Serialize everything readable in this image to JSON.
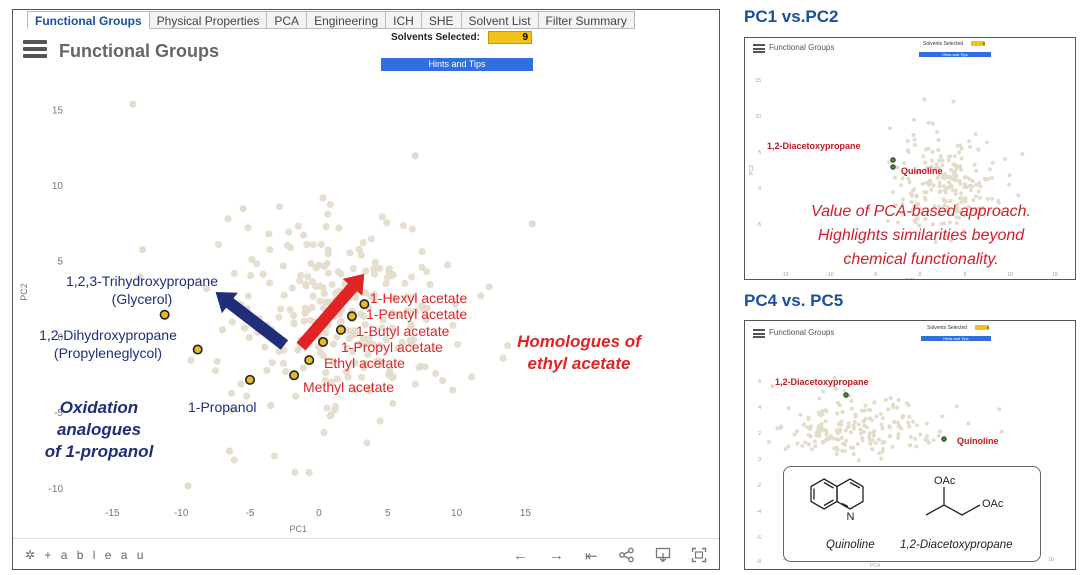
{
  "tabs": [
    {
      "label": "Functional Groups",
      "active": true
    },
    {
      "label": "Physical Properties",
      "active": false
    },
    {
      "label": "PCA",
      "active": false
    },
    {
      "label": "Engineering",
      "active": false
    },
    {
      "label": "ICH",
      "active": false
    },
    {
      "label": "SHE",
      "active": false
    },
    {
      "label": "Solvent List",
      "active": false
    },
    {
      "label": "Filter Summary",
      "active": false
    }
  ],
  "main": {
    "title": "Functional Groups",
    "solvents_selected_label": "Solvents Selected:",
    "solvents_selected_value": "9",
    "hints_label": "Hints and Tips"
  },
  "footer": {
    "logo_text": "+ a b l e a u",
    "icons": [
      "undo-icon",
      "redo-icon",
      "revert-icon",
      "share-icon",
      "download-icon",
      "fullscreen-icon"
    ]
  },
  "chart_data": {
    "type": "scatter",
    "xlabel": "PC1",
    "ylabel": "PC2",
    "xlim": [
      -18,
      17
    ],
    "ylim": [
      -11,
      17
    ],
    "xticks": [
      -15,
      -10,
      -5,
      0,
      5,
      10,
      15
    ],
    "yticks": [
      -10,
      -5,
      0,
      5,
      10,
      15
    ],
    "grid": false,
    "colors": {
      "background_points": "#e3dccb",
      "highlight_fill": "#e8b92a",
      "highlight_edge": "#222222",
      "oxidation": "#1f2d7a",
      "homologue": "#e02424"
    },
    "highlighted_series": [
      {
        "name": "1,2,3-Trihydroxypropane (Glycerol)",
        "group": "oxidation",
        "x": -11.2,
        "y": 1.5
      },
      {
        "name": "1,2-Dihydroxypropane (Propyleneglycol)",
        "group": "oxidation",
        "x": -8.8,
        "y": -0.8
      },
      {
        "name": "1-Propanol",
        "group": "oxidation",
        "x": -5.0,
        "y": -2.8
      },
      {
        "name": "Methyl acetate",
        "group": "homologue",
        "x": -1.8,
        "y": -2.5
      },
      {
        "name": "Ethyl acetate",
        "group": "homologue",
        "x": -0.7,
        "y": -1.5
      },
      {
        "name": "1-Propyl acetate",
        "group": "homologue",
        "x": 0.3,
        "y": -0.3
      },
      {
        "name": "1-Butyl acetate",
        "group": "homologue",
        "x": 1.6,
        "y": 0.5
      },
      {
        "name": "1-Pentyl acetate",
        "group": "homologue",
        "x": 2.4,
        "y": 1.4
      },
      {
        "name": "1-Hexyl acetate",
        "group": "homologue",
        "x": 3.3,
        "y": 2.2
      }
    ],
    "label_lines": {
      "glycerol": [
        "1,2,3-Trihydroxypropane",
        "(Glycerol)"
      ],
      "propyleneglycol": [
        "1,2-Dihydroxypropane",
        "(Propyleneglycol)"
      ],
      "propanol": "1-Propanol",
      "hexyl": "1-Hexyl acetate",
      "pentyl": "1-Pentyl acetate",
      "butyl": "1-Butyl acetate",
      "propyl": "1-Propyl acetate",
      "ethyl": "Ethyl acetate",
      "methyl": "Methyl acetate"
    },
    "annotations": {
      "homologues": [
        "Homologues of",
        "ethyl acetate"
      ],
      "oxidation": [
        "Oxidation",
        "analogues",
        "of 1-propanol"
      ]
    },
    "arrows": [
      {
        "group": "oxidation",
        "from": [
          -2.5,
          -0.5
        ],
        "to": [
          -7.5,
          3.0
        ]
      },
      {
        "group": "homologue",
        "from": [
          -1.3,
          -0.6
        ],
        "to": [
          3.3,
          4.2
        ]
      }
    ]
  },
  "side_panels": [
    {
      "title": "PC1 vs.PC2",
      "mini_title": "Functional Groups",
      "mini_selected_label": "Solvents Selected",
      "mini_selected_value": "9",
      "mini_hints": "Hints and Tips",
      "x_axis_label": "PC1",
      "y_axis_label": "PC2",
      "labels": [
        "1,2-Diacetoxypropane",
        "Quinoline"
      ],
      "note_lines": [
        "Value of PCA-based approach.",
        "Highlights similarities beyond",
        "chemical functionality."
      ]
    },
    {
      "title": "PC4 vs. PC5",
      "mini_title": "Functional Groups",
      "mini_selected_label": "Solvents Selected",
      "mini_selected_value": "9",
      "mini_hints": "Hints and Tips",
      "x_axis_label": "PC4",
      "labels": [
        "1,2-Diacetoxypropane",
        "Quinoline"
      ],
      "structures": [
        "Quinoline",
        "1,2-Diacetoxypropane"
      ],
      "structure_substituent": "OAc"
    }
  ]
}
